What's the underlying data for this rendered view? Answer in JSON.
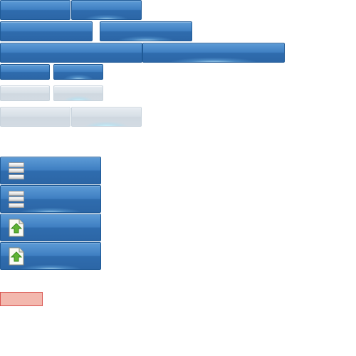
{
  "buttons": {
    "row1": [
      {
        "label": ""
      },
      {
        "label": ""
      }
    ],
    "row2": [
      {
        "label": ""
      },
      {
        "label": ""
      }
    ],
    "row3": [
      {
        "label": ""
      },
      {
        "label": ""
      }
    ],
    "row4_small": [
      {
        "label": ""
      },
      {
        "label": ""
      }
    ],
    "row5_small_disabled": [
      {
        "label": ""
      },
      {
        "label": ""
      }
    ],
    "row6_disabled": [
      {
        "label": ""
      },
      {
        "label": ""
      }
    ],
    "icon_buttons": [
      {
        "icon": "server-icon",
        "label": ""
      },
      {
        "icon": "server-icon",
        "label": ""
      },
      {
        "icon": "upload-file-icon",
        "label": ""
      },
      {
        "icon": "upload-file-icon",
        "label": ""
      }
    ]
  },
  "alert": {
    "label": ""
  },
  "colors": {
    "button_blue": "#3f7fc2",
    "button_border": "#1f5a97",
    "disabled_gray": "#d7dfe6",
    "alert_fill": "#f3b8ae",
    "alert_border": "#d9534f",
    "icon_green": "#5fb334"
  }
}
